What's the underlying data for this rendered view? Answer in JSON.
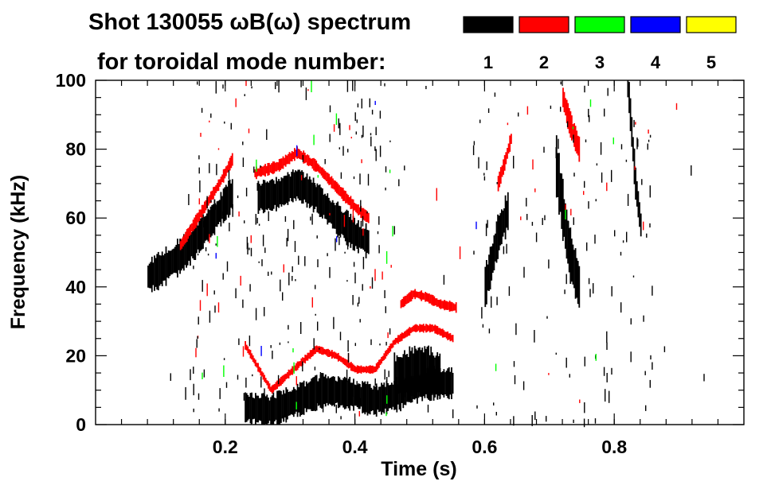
{
  "chart_data": {
    "type": "heatmap",
    "title_line1": "Shot 130055 ωB(ω) spectrum",
    "title_line2": "for toroidal mode number:",
    "xlabel": "Time (s)",
    "ylabel": "Frequency (kHz)",
    "xlim": [
      0.0,
      1.0
    ],
    "ylim": [
      0,
      100
    ],
    "xticks": [
      0.2,
      0.4,
      0.6,
      0.8
    ],
    "xtick_labels": [
      "0.2",
      "0.4",
      "0.6",
      "0.8"
    ],
    "yticks": [
      0,
      20,
      40,
      60,
      80,
      100
    ],
    "ytick_labels": [
      "0",
      "20",
      "40",
      "60",
      "80",
      "100"
    ],
    "legend": [
      {
        "mode": "1",
        "color": "#000000"
      },
      {
        "mode": "2",
        "color": "#ff0000"
      },
      {
        "mode": "3",
        "color": "#00ff00"
      },
      {
        "mode": "4",
        "color": "#0000ff"
      },
      {
        "mode": "5",
        "color": "#ffff00"
      }
    ],
    "features": [
      {
        "mode": 1,
        "name": "early-broad-mode",
        "t": [
          0.08,
          0.1,
          0.13,
          0.16,
          0.19,
          0.21
        ],
        "f": [
          43,
          45,
          49,
          55,
          62,
          67
        ],
        "width_khz": 9
      },
      {
        "mode": 2,
        "name": "early-chirp-n2",
        "t": [
          0.13,
          0.16,
          0.19,
          0.21
        ],
        "f": [
          52,
          61,
          70,
          77
        ],
        "width_khz": 3
      },
      {
        "mode": 1,
        "name": "upper-mode-n1",
        "t": [
          0.25,
          0.28,
          0.31,
          0.34,
          0.37,
          0.4,
          0.42
        ],
        "f": [
          66,
          67,
          70,
          66,
          60,
          55,
          53
        ],
        "width_khz": 8
      },
      {
        "mode": 2,
        "name": "upper-mode-n2",
        "t": [
          0.245,
          0.28,
          0.31,
          0.34,
          0.37,
          0.4,
          0.42
        ],
        "f": [
          73,
          75,
          79,
          75,
          69,
          63,
          60
        ],
        "width_khz": 3
      },
      {
        "mode": 1,
        "name": "low-freq-n1",
        "t": [
          0.23,
          0.27,
          0.31,
          0.35,
          0.39,
          0.43,
          0.47,
          0.51,
          0.55
        ],
        "f": [
          5,
          4,
          7,
          10,
          9,
          7,
          9,
          12,
          12
        ],
        "width_khz": 8
      },
      {
        "mode": 2,
        "name": "low-chirp-n2",
        "t": [
          0.23,
          0.27,
          0.31,
          0.34,
          0.37,
          0.4,
          0.43,
          0.46,
          0.49,
          0.52,
          0.55
        ],
        "f": [
          23,
          10,
          17,
          22,
          20,
          16,
          16,
          24,
          28,
          28,
          25
        ],
        "width_khz": 2
      },
      {
        "mode": 2,
        "name": "upper-chirp-n2",
        "t": [
          0.47,
          0.49,
          0.51,
          0.53,
          0.555
        ],
        "f": [
          35,
          38,
          37,
          35,
          34
        ],
        "width_khz": 2.5
      },
      {
        "mode": 1,
        "name": "mid-burst-n1",
        "t": [
          0.46,
          0.5,
          0.53
        ],
        "f": [
          14,
          16,
          14
        ],
        "width_khz": 12
      },
      {
        "mode": 1,
        "name": "late-band-a",
        "t": [
          0.6,
          0.61,
          0.62,
          0.635
        ],
        "f": [
          40,
          47,
          55,
          62
        ],
        "width_khz": 10
      },
      {
        "mode": 1,
        "name": "late-band-b",
        "t": [
          0.71,
          0.72,
          0.73,
          0.745
        ],
        "f": [
          75,
          62,
          50,
          40
        ],
        "width_khz": 14
      },
      {
        "mode": 1,
        "name": "late-band-c",
        "t": [
          0.82,
          0.826,
          0.832,
          0.84
        ],
        "f": [
          100,
          85,
          70,
          58
        ],
        "width_khz": 8
      },
      {
        "mode": 2,
        "name": "late-red-a",
        "t": [
          0.62,
          0.63,
          0.64
        ],
        "f": [
          70,
          76,
          83
        ],
        "width_khz": 4
      },
      {
        "mode": 2,
        "name": "late-red-b",
        "t": [
          0.72,
          0.73,
          0.745
        ],
        "f": [
          95,
          88,
          80
        ],
        "width_khz": 6
      }
    ]
  }
}
